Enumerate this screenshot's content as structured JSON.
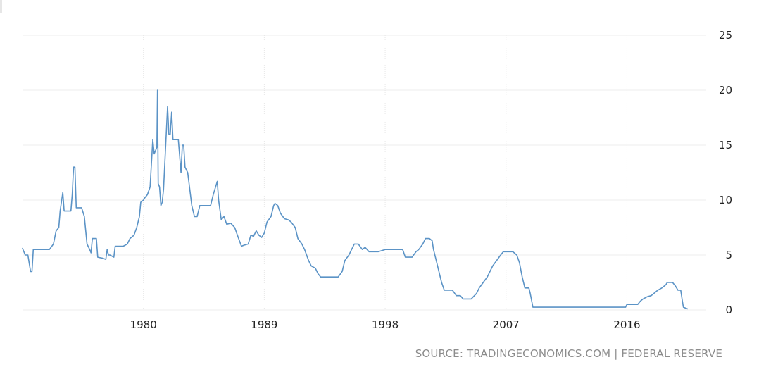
{
  "chart_data": {
    "type": "line",
    "title": "",
    "xlabel": "",
    "ylabel": "",
    "xlim": [
      1971.0,
      2021.9
    ],
    "ylim": [
      0,
      25
    ],
    "x_ticks": [
      1980,
      1989,
      1998,
      2007,
      2016
    ],
    "y_ticks": [
      0,
      5,
      10,
      15,
      20,
      25
    ],
    "y_axis_side": "right",
    "grid": true,
    "legend": "none",
    "color": "#5b93c6",
    "series": [
      {
        "values": [
          [
            1971.0,
            5.6
          ],
          [
            1971.2,
            5.0
          ],
          [
            1971.4,
            5.0
          ],
          [
            1971.6,
            3.5
          ],
          [
            1971.7,
            3.5
          ],
          [
            1971.8,
            5.5
          ],
          [
            1972.0,
            5.5
          ],
          [
            1972.5,
            5.5
          ],
          [
            1973.0,
            5.5
          ],
          [
            1973.3,
            6.0
          ],
          [
            1973.5,
            7.2
          ],
          [
            1973.7,
            7.5
          ],
          [
            1973.8,
            9.0
          ],
          [
            1974.0,
            10.7
          ],
          [
            1974.1,
            9.0
          ],
          [
            1974.3,
            9.0
          ],
          [
            1974.5,
            9.0
          ],
          [
            1974.6,
            9.0
          ],
          [
            1974.7,
            10.5
          ],
          [
            1974.8,
            13.0
          ],
          [
            1974.9,
            13.0
          ],
          [
            1975.0,
            9.3
          ],
          [
            1975.2,
            9.3
          ],
          [
            1975.4,
            9.3
          ],
          [
            1975.6,
            8.5
          ],
          [
            1975.8,
            6.0
          ],
          [
            1976.0,
            5.5
          ],
          [
            1976.1,
            5.2
          ],
          [
            1976.2,
            6.5
          ],
          [
            1976.4,
            6.5
          ],
          [
            1976.5,
            6.5
          ],
          [
            1976.6,
            4.8
          ],
          [
            1977.0,
            4.7
          ],
          [
            1977.2,
            4.6
          ],
          [
            1977.3,
            5.5
          ],
          [
            1977.4,
            5.0
          ],
          [
            1977.5,
            5.0
          ],
          [
            1977.8,
            4.8
          ],
          [
            1977.9,
            5.8
          ],
          [
            1978.0,
            5.8
          ],
          [
            1978.5,
            5.8
          ],
          [
            1978.8,
            6.0
          ],
          [
            1979.0,
            6.5
          ],
          [
            1979.3,
            6.8
          ],
          [
            1979.5,
            7.5
          ],
          [
            1979.7,
            8.5
          ],
          [
            1979.8,
            9.8
          ],
          [
            1980.0,
            10.0
          ],
          [
            1980.1,
            10.2
          ],
          [
            1980.3,
            10.5
          ],
          [
            1980.5,
            11.2
          ],
          [
            1980.7,
            15.5
          ],
          [
            1980.8,
            14.2
          ],
          [
            1981.0,
            14.8
          ],
          [
            1981.05,
            20.0
          ],
          [
            1981.1,
            11.5
          ],
          [
            1981.2,
            11.2
          ],
          [
            1981.3,
            9.5
          ],
          [
            1981.4,
            9.8
          ],
          [
            1981.5,
            11.0
          ],
          [
            1981.6,
            13.5
          ],
          [
            1981.8,
            18.5
          ],
          [
            1981.9,
            16.0
          ],
          [
            1982.0,
            16.0
          ],
          [
            1982.1,
            18.0
          ],
          [
            1982.2,
            15.5
          ],
          [
            1982.4,
            15.5
          ],
          [
            1982.6,
            15.5
          ],
          [
            1982.7,
            14.0
          ],
          [
            1982.8,
            12.5
          ],
          [
            1982.9,
            15.0
          ],
          [
            1983.0,
            15.0
          ],
          [
            1983.1,
            13.0
          ],
          [
            1983.3,
            12.5
          ],
          [
            1983.5,
            10.5
          ],
          [
            1983.6,
            9.5
          ],
          [
            1983.8,
            8.5
          ],
          [
            1984.0,
            8.5
          ],
          [
            1984.2,
            9.5
          ],
          [
            1984.5,
            9.5
          ],
          [
            1984.8,
            9.5
          ],
          [
            1985.0,
            9.5
          ],
          [
            1985.2,
            10.5
          ],
          [
            1985.5,
            11.7
          ],
          [
            1985.6,
            10.0
          ],
          [
            1985.8,
            8.2
          ],
          [
            1986.0,
            8.5
          ],
          [
            1986.2,
            7.8
          ],
          [
            1986.5,
            7.9
          ],
          [
            1986.8,
            7.5
          ],
          [
            1987.0,
            6.8
          ],
          [
            1987.3,
            5.8
          ],
          [
            1987.5,
            5.9
          ],
          [
            1987.8,
            6.0
          ],
          [
            1988.0,
            6.8
          ],
          [
            1988.2,
            6.7
          ],
          [
            1988.4,
            7.2
          ],
          [
            1988.6,
            6.8
          ],
          [
            1988.8,
            6.6
          ],
          [
            1989.0,
            7.0
          ],
          [
            1989.2,
            8.0
          ],
          [
            1989.5,
            8.5
          ],
          [
            1989.7,
            9.5
          ],
          [
            1989.8,
            9.7
          ],
          [
            1990.0,
            9.5
          ],
          [
            1990.2,
            8.8
          ],
          [
            1990.5,
            8.3
          ],
          [
            1990.8,
            8.2
          ],
          [
            1991.0,
            8.0
          ],
          [
            1991.3,
            7.5
          ],
          [
            1991.5,
            6.5
          ],
          [
            1991.8,
            6.0
          ],
          [
            1992.0,
            5.5
          ],
          [
            1992.3,
            4.5
          ],
          [
            1992.5,
            4.0
          ],
          [
            1992.8,
            3.8
          ],
          [
            1993.0,
            3.3
          ],
          [
            1993.2,
            3.0
          ],
          [
            1993.5,
            3.0
          ],
          [
            1994.0,
            3.0
          ],
          [
            1994.5,
            3.0
          ],
          [
            1994.8,
            3.5
          ],
          [
            1995.0,
            4.5
          ],
          [
            1995.3,
            5.0
          ],
          [
            1995.5,
            5.5
          ],
          [
            1995.7,
            6.0
          ],
          [
            1996.0,
            6.0
          ],
          [
            1996.3,
            5.5
          ],
          [
            1996.5,
            5.7
          ],
          [
            1996.8,
            5.3
          ],
          [
            1997.0,
            5.3
          ],
          [
            1997.5,
            5.3
          ],
          [
            1998.0,
            5.5
          ],
          [
            1998.5,
            5.5
          ],
          [
            1999.0,
            5.5
          ],
          [
            1999.3,
            5.5
          ],
          [
            1999.5,
            4.8
          ],
          [
            1999.8,
            4.8
          ],
          [
            2000.0,
            4.8
          ],
          [
            2000.3,
            5.3
          ],
          [
            2000.5,
            5.5
          ],
          [
            2000.8,
            6.0
          ],
          [
            2001.0,
            6.5
          ],
          [
            2001.3,
            6.5
          ],
          [
            2001.5,
            6.3
          ],
          [
            2001.6,
            5.5
          ],
          [
            2001.8,
            4.5
          ],
          [
            2002.0,
            3.5
          ],
          [
            2002.2,
            2.5
          ],
          [
            2002.4,
            1.8
          ],
          [
            2002.7,
            1.8
          ],
          [
            2003.0,
            1.8
          ],
          [
            2003.3,
            1.3
          ],
          [
            2003.6,
            1.3
          ],
          [
            2003.8,
            1.0
          ],
          [
            2004.0,
            1.0
          ],
          [
            2004.4,
            1.0
          ],
          [
            2004.8,
            1.5
          ],
          [
            2005.0,
            2.0
          ],
          [
            2005.3,
            2.5
          ],
          [
            2005.6,
            3.0
          ],
          [
            2005.8,
            3.5
          ],
          [
            2006.0,
            4.0
          ],
          [
            2006.3,
            4.5
          ],
          [
            2006.6,
            5.0
          ],
          [
            2006.8,
            5.3
          ],
          [
            2007.0,
            5.3
          ],
          [
            2007.5,
            5.3
          ],
          [
            2007.8,
            5.0
          ],
          [
            2008.0,
            4.3
          ],
          [
            2008.2,
            3.0
          ],
          [
            2008.4,
            2.0
          ],
          [
            2008.7,
            2.0
          ],
          [
            2008.8,
            1.5
          ],
          [
            2009.0,
            0.25
          ],
          [
            2010.0,
            0.25
          ],
          [
            2012.0,
            0.25
          ],
          [
            2014.0,
            0.25
          ],
          [
            2015.0,
            0.25
          ],
          [
            2015.9,
            0.25
          ],
          [
            2016.0,
            0.5
          ],
          [
            2016.5,
            0.5
          ],
          [
            2016.8,
            0.5
          ],
          [
            2017.0,
            0.8
          ],
          [
            2017.2,
            1.0
          ],
          [
            2017.5,
            1.2
          ],
          [
            2017.8,
            1.3
          ],
          [
            2018.0,
            1.5
          ],
          [
            2018.3,
            1.8
          ],
          [
            2018.6,
            2.0
          ],
          [
            2018.9,
            2.3
          ],
          [
            2019.0,
            2.5
          ],
          [
            2019.4,
            2.5
          ],
          [
            2019.6,
            2.2
          ],
          [
            2019.8,
            1.8
          ],
          [
            2020.0,
            1.8
          ],
          [
            2020.1,
            1.0
          ],
          [
            2020.2,
            0.25
          ],
          [
            2020.5,
            0.1
          ]
        ]
      }
    ]
  },
  "source": {
    "text": "SOURCE: TRADINGECONOMICS.COM | FEDERAL RESERVE"
  }
}
